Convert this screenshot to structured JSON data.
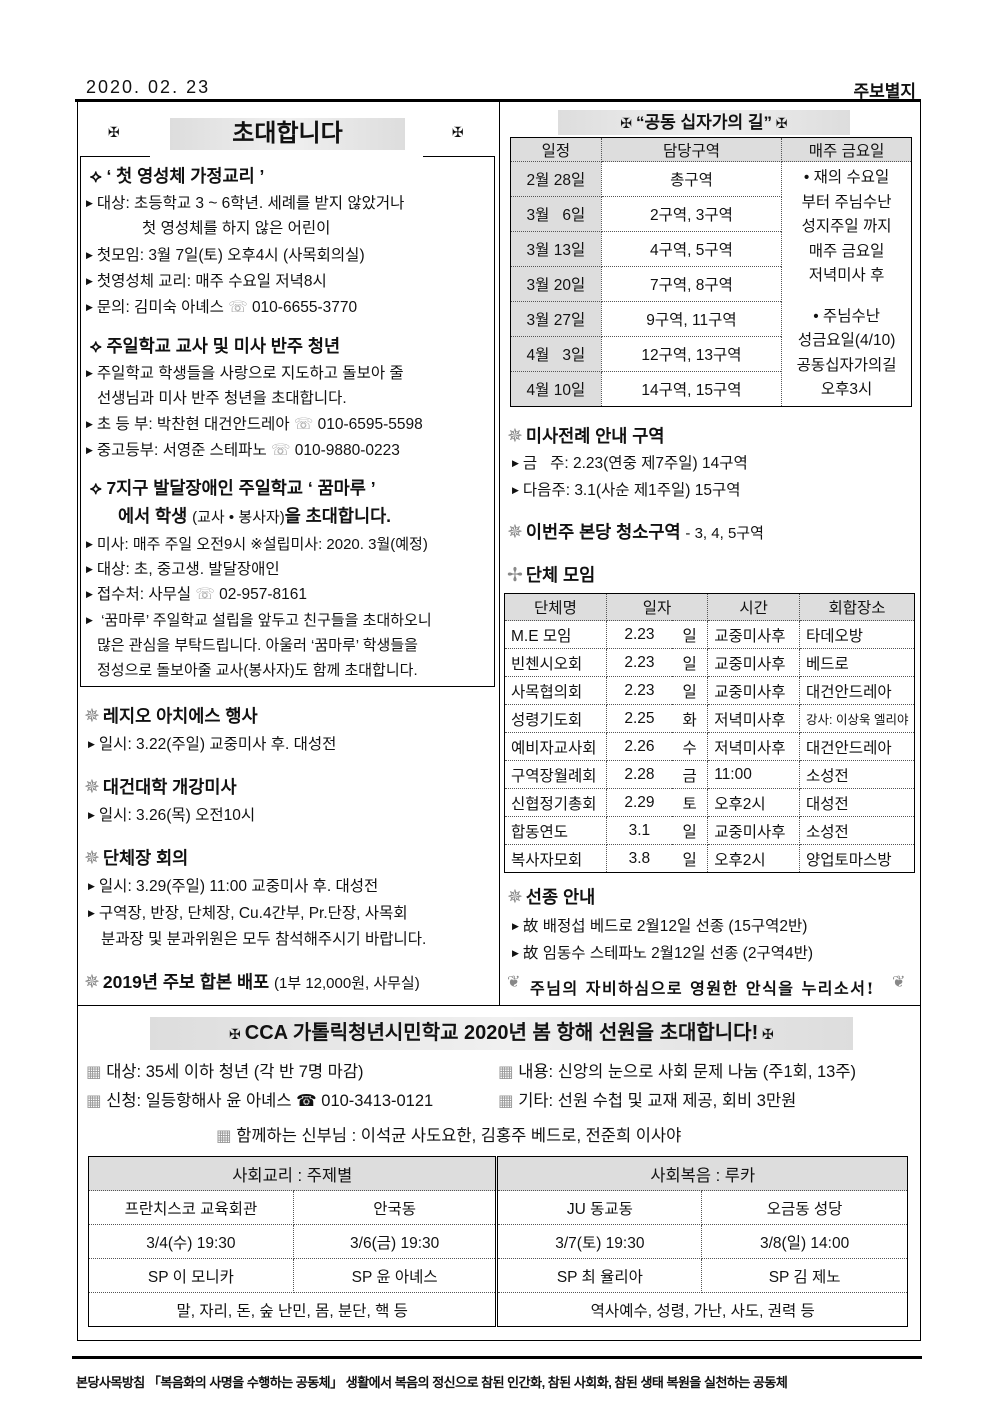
{
  "header": {
    "date": "2020. 02. 23",
    "label": "주보별지"
  },
  "invite": {
    "title": "초대합니다",
    "s1": {
      "title": "‘ 첫 영성체 가정교리 ’",
      "lines": [
        "대상: 초등학교 3 ~ 6학년. 세례를 받지 않았거나",
        "첫 영성체를 하지 않은 어린이",
        "첫모임: 3월 7일(토) 오후4시 (사목회의실)",
        "첫영성체 교리: 매주 수요일 저녁8시",
        "문의: 김미숙 아녜스",
        "010-6655-3770"
      ]
    },
    "s2": {
      "title": "주일학교 교사 및 미사 반주 청년",
      "lines": [
        "주일학교 학생들을 사랑으로 지도하고 돌보아 줄",
        "선생님과 미사 반주 청년을 초대합니다.",
        "초 등 부: 박찬현 대건안드레아",
        "010-6595-5598",
        "중고등부: 서영준 스테파노",
        "010-9880-0223"
      ]
    },
    "s3": {
      "title1": "7지구 발달장애인 주일학교 ‘ 꿈마루 ’",
      "title2a": "에서 학생",
      "title2b": "(교사 • 봉사자)",
      "title2c": "을 초대합니다.",
      "lines": [
        "미사: 매주 주일 오전9시 ※설립미사: 2020. 3월(예정)",
        "대상: 초, 중고생. 발달장애인",
        "접수처: 사무실",
        "02-957-8161",
        "‘꿈마루’ 주일학교 설립을 앞두고 친구들을 초대하오니",
        "많은 관심을 부탁드립니다. 아울러 ‘꿈마루’ 학생들을",
        "정성으로 돌보아줄 교사(봉사자)도 함께 초대합니다."
      ]
    }
  },
  "events": [
    {
      "title": "레지오 아치에스 행사",
      "lines": [
        "일시: 3.22(주일) 교중미사 후. 대성전"
      ]
    },
    {
      "title": "대건대학 개강미사",
      "lines": [
        "일시: 3.26(목) 오전10시"
      ]
    },
    {
      "title": "단체장 회의",
      "lines": [
        "일시: 3.29(주일) 11:00 교중미사 후. 대성전",
        "구역장, 반장, 단체장, Cu.4간부, Pr.단장, 사목회",
        "분과장 및 분과위원은 모두 참석해주시기 바랍니다."
      ]
    },
    {
      "title": "2019년 주보 합본 배포",
      "note": "(1부 12,000원, 사무실)"
    }
  ],
  "cross_way": {
    "title": "“공동 십자가의 길”",
    "headers": [
      "일정",
      "담당구역",
      "매주 금요일"
    ],
    "rows": [
      [
        "2월 28일",
        "총구역"
      ],
      [
        "3월   6일",
        "2구역, 3구역"
      ],
      [
        "3월 13일",
        "4구역, 5구역"
      ],
      [
        "3월 20일",
        "7구역, 8구역"
      ],
      [
        "3월 27일",
        "9구역, 11구역"
      ],
      [
        "4월   3일",
        "12구역, 13구역"
      ],
      [
        "4월 10일",
        "14구역, 15구역"
      ]
    ],
    "note1": [
      "• 재의 수요일",
      "부터 주님수난",
      "성지주일 까지",
      "매주 금요일",
      "저녁미사 후"
    ],
    "note2": [
      "•  주님수난",
      "성금요일(4/10)",
      "공동십자가의길",
      "오후3시"
    ]
  },
  "liturgy": {
    "title": "미사전례 안내 구역",
    "lines": [
      "금   주: 2.23(연중 제7주일) 14구역",
      "다음주: 3.1(사순 제1주일) 15구역"
    ]
  },
  "cleaning": {
    "title": "이번주 본당 청소구역",
    "value": "- 3, 4, 5구역"
  },
  "groups": {
    "title": "단체 모임",
    "headers": [
      "단체명",
      "일자",
      "시간",
      "회합장소"
    ],
    "rows": [
      [
        "M.E 모임",
        "2.23",
        "일",
        "교중미사후",
        "타데오방"
      ],
      [
        "빈첸시오회",
        "2.23",
        "일",
        "교중미사후",
        "베드로"
      ],
      [
        "사목협의회",
        "2.23",
        "일",
        "교중미사후",
        "대건안드레아"
      ],
      [
        "성령기도회",
        "2.25",
        "화",
        "저녁미사후",
        "강사: 이상욱 엘리야"
      ],
      [
        "예비자교사회",
        "2.26",
        "수",
        "저녁미사후",
        "대건안드레아"
      ],
      [
        "구역장월례회",
        "2.28",
        "금",
        "11:00",
        "소성전"
      ],
      [
        "신협정기총회",
        "2.29",
        "토",
        "오후2시",
        "대성전"
      ],
      [
        "합동연도",
        "3.1",
        "일",
        "교중미사후",
        "소성전"
      ],
      [
        "복사자모회",
        "3.8",
        "일",
        "오후2시",
        "양업토마스방"
      ]
    ]
  },
  "funeral": {
    "title": "선종 안내",
    "lines": [
      "故 배정섭 베드로 2월12일 선종 (15구역2반)",
      "故 임동수 스테파노 2월12일 선종 (2구역4반)"
    ],
    "prayer": "주님의 자비하심으로 영원한 안식을 누리소서!"
  },
  "cca": {
    "title": "CCA 가톨릭청년시민학교 2020년 봄 항해 선원을 초대합니다!",
    "items": [
      "대상: 35세 이하 청년 (각 반 7명 마감)",
      "내용: 신앙의 눈으로 사회 문제 나눔 (주1회, 13주)",
      "신청: 일등항해사 윤 아녜스",
      "기타: 선원 수첩 및 교재 제공, 회비 3만원",
      "함께하는 신부님 : 이석균 사도요한, 김홍주 베드로, 전준희 이사야"
    ],
    "phone": "010-3413-0121",
    "table": {
      "headers": [
        "사회교리 : 주제별",
        "사회복음 : 루카"
      ],
      "places": [
        "프란치스코 교육회관",
        "안국동",
        "JU 동교동",
        "오금동 성당"
      ],
      "times": [
        "3/4(수) 19:30",
        "3/6(금) 19:30",
        "3/7(토) 19:30",
        "3/8(일) 14:00"
      ],
      "leaders": [
        "SP 이 모니카",
        "SP 윤 아녜스",
        "SP 최 율리아",
        "SP 김 제노"
      ],
      "topics": [
        "말, 자리, 돈, 숲 난민, 몸, 분단, 핵 등",
        "역사예수, 성령, 가난, 사도, 권력 등"
      ]
    }
  },
  "footer": "본당사목방침 「복음화의 사명을 수행하는 공동체」 생활에서 복음의 정신으로 참된 인간화, 참된 사회화, 참된 생태 복원을 실천하는 공동체"
}
